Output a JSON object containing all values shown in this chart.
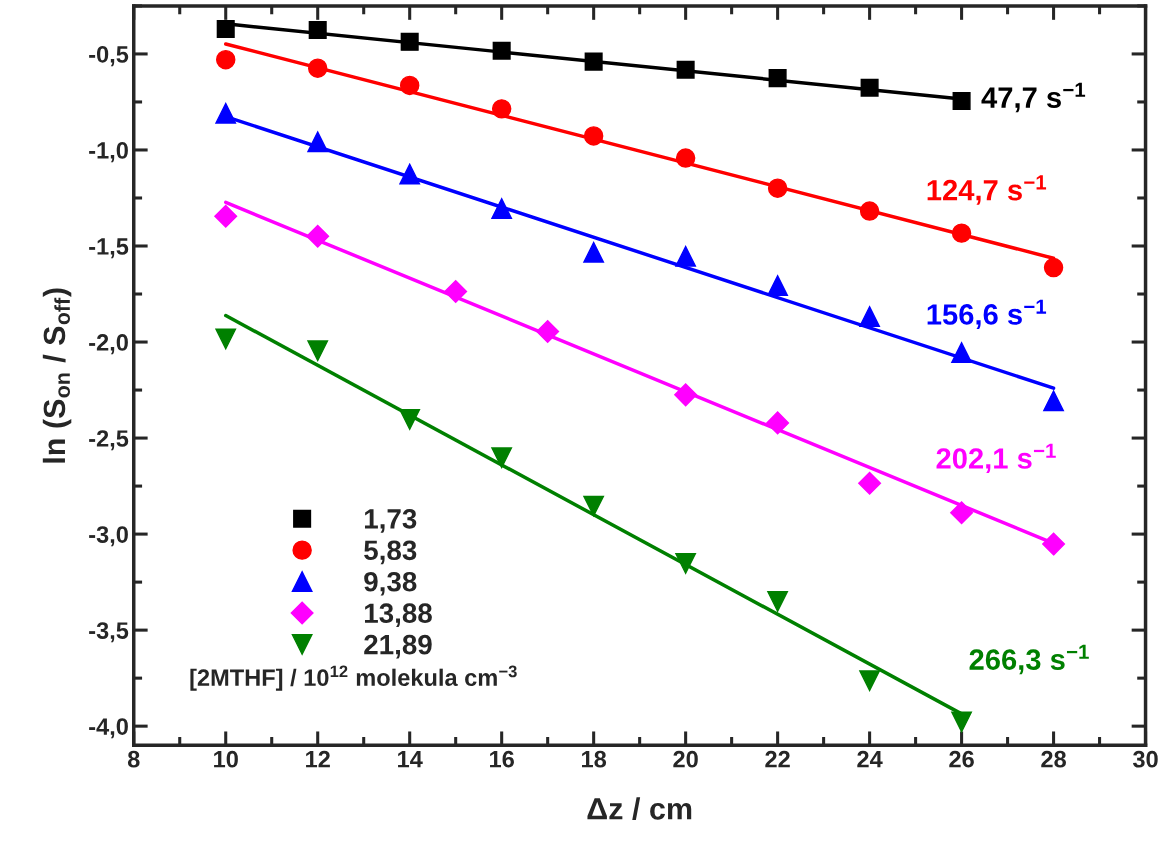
{
  "chart_data": {
    "type": "scatter",
    "xlabel": "Δz / cm",
    "ylabel": "ln (S$_{on}$ / S$_{off}$)",
    "legend_title": "[2MTHF] / 10$^{12}$ molekula cm$^{−3}$",
    "legend": "bottom left",
    "grid": false,
    "xlim": [
      8,
      30
    ],
    "xticks": [
      8,
      10,
      12,
      14,
      16,
      18,
      20,
      22,
      24,
      26,
      28,
      30
    ],
    "ylim": [
      -4.1,
      -0.25
    ],
    "yticks": [
      {
        "value": -4.0,
        "label": "-4,0"
      },
      {
        "value": -3.5,
        "label": "-3,5"
      },
      {
        "value": -3.0,
        "label": "-3,0"
      },
      {
        "value": -2.5,
        "label": "-2,5"
      },
      {
        "value": -2.0,
        "label": "-2,0"
      },
      {
        "value": -1.5,
        "label": "-1,5"
      },
      {
        "value": -1.0,
        "label": "-1,0"
      },
      {
        "value": -0.5,
        "label": "-0,5"
      }
    ],
    "series": [
      {
        "name": "1,73",
        "color": "#000000",
        "marker": "square",
        "x": [
          10,
          12,
          14,
          16,
          18,
          20,
          22,
          24,
          26
        ],
        "values": [
          -0.37,
          -0.375,
          -0.437,
          -0.483,
          -0.54,
          -0.582,
          -0.626,
          -0.676,
          -0.745
        ]
      },
      {
        "name": "5,83",
        "color": "#ff0000",
        "marker": "circle",
        "x": [
          10,
          12,
          14,
          16,
          18,
          20,
          22,
          24,
          26,
          28
        ],
        "values": [
          -0.53,
          -0.574,
          -0.664,
          -0.786,
          -0.927,
          -1.042,
          -1.199,
          -1.318,
          -1.433,
          -1.612
        ]
      },
      {
        "name": "9,38",
        "color": "#0000ff",
        "marker": "triangle",
        "x": [
          10,
          12,
          14,
          16,
          18,
          20,
          22,
          24,
          26,
          28
        ],
        "values": [
          -0.809,
          -0.957,
          -1.125,
          -1.305,
          -1.533,
          -1.554,
          -1.706,
          -1.867,
          -2.055,
          -2.306
        ]
      },
      {
        "name": "13,88",
        "color": "#ff00ff",
        "marker": "diamond",
        "x": [
          10,
          12,
          15,
          17,
          20,
          22,
          24,
          26,
          28
        ],
        "values": [
          -1.345,
          -1.449,
          -1.737,
          -1.945,
          -2.275,
          -2.421,
          -2.735,
          -2.889,
          -3.052
        ]
      },
      {
        "name": "21,89",
        "color": "#008000",
        "marker": "triangle_down",
        "x": [
          10,
          12,
          14,
          16,
          18,
          20,
          22,
          24,
          26
        ],
        "values": [
          -1.984,
          -2.045,
          -2.403,
          -2.602,
          -2.854,
          -3.153,
          -3.351,
          -3.763,
          -3.978
        ]
      },
      {
        "type": "line",
        "color": "#000000",
        "x": [
          10,
          26
        ],
        "values": [
          -0.343,
          -0.735
        ]
      },
      {
        "type": "line",
        "color": "#ff0000",
        "x": [
          10,
          28
        ],
        "values": [
          -0.448,
          -1.564
        ]
      },
      {
        "type": "line",
        "color": "#0000ff",
        "x": [
          10,
          28
        ],
        "values": [
          -0.826,
          -2.24
        ]
      },
      {
        "type": "line",
        "color": "#ff00ff",
        "x": [
          10,
          28
        ],
        "values": [
          -1.273,
          -3.048
        ]
      },
      {
        "type": "line",
        "color": "#008000",
        "x": [
          10,
          26
        ],
        "values": [
          -1.862,
          -3.936
        ]
      }
    ],
    "annotations": [
      "47,7 s$^{−1}$",
      "124,7 s$^{−1}$",
      "156,6 s$^{−1}$",
      "202,1 s$^{−1}$",
      "266,3 s$^{−1}$"
    ]
  }
}
